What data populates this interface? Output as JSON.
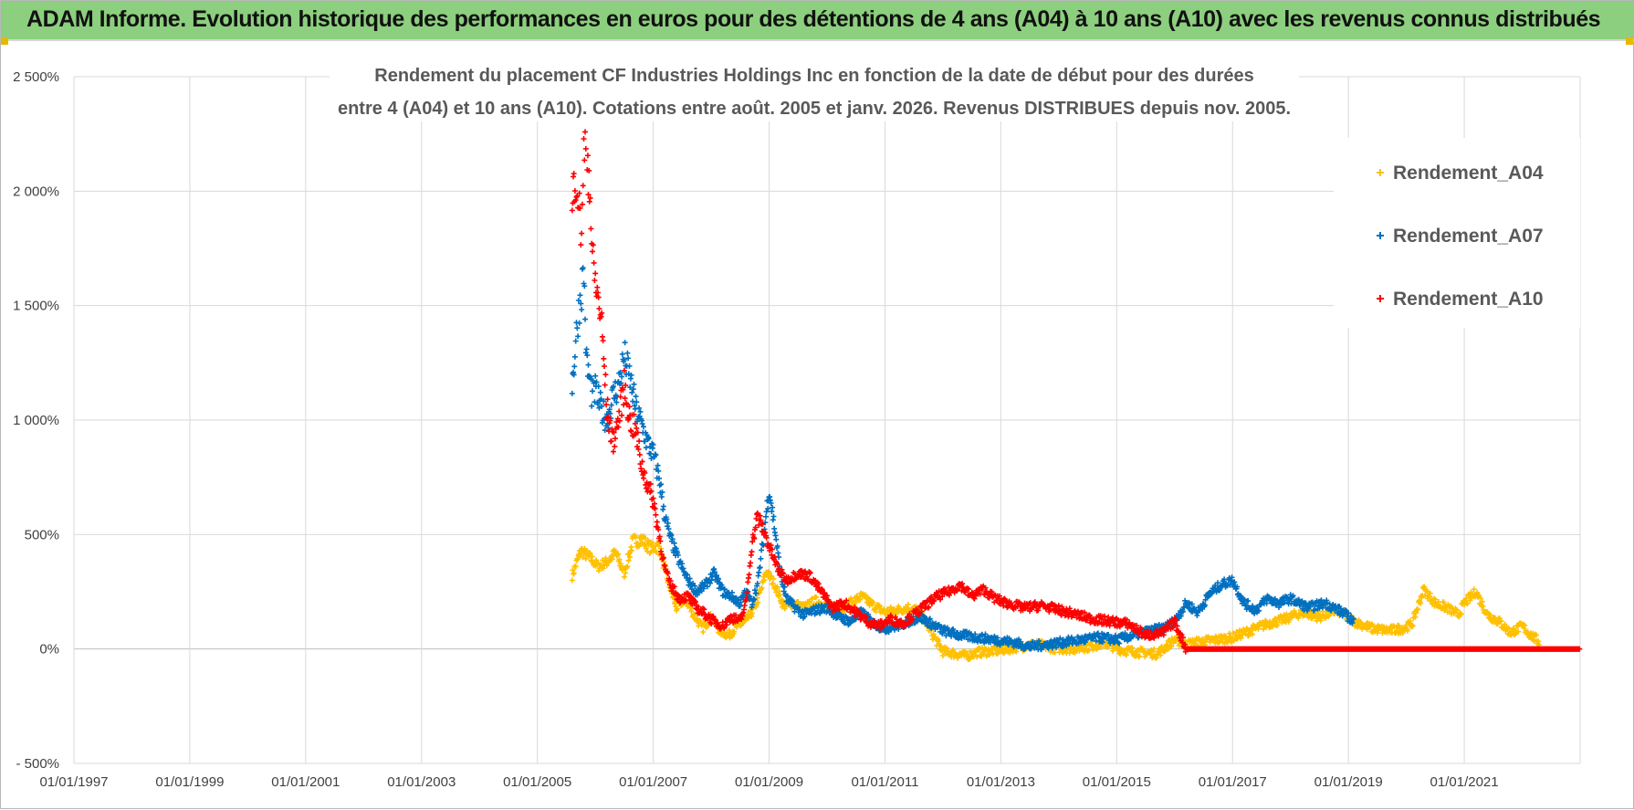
{
  "header": {
    "title": "ADAM Informe. Evolution historique des performances en euros pour des détentions de 4 ans (A04) à 10 ans (A10) avec les revenus connus distribués"
  },
  "chart_data": {
    "type": "scatter",
    "title_line1": "Rendement du placement CF Industries Holdings Inc en fonction de la date de début pour des durées",
    "title_line2": "entre 4 (A04) et 10 ans (A10).  Cotations entre août. 2005 et janv. 2026. Revenus DISTRIBUES depuis nov. 2005.",
    "xlabel": "",
    "ylabel": "",
    "x_range_years": [
      1997.0,
      2023.0
    ],
    "ylim": [
      -500,
      2500
    ],
    "grid": true,
    "legend_position": "top-right",
    "x_tick_labels": [
      "01/01/1997",
      "01/01/1999",
      "01/01/2001",
      "01/01/2003",
      "01/01/2005",
      "01/01/2007",
      "01/01/2009",
      "01/01/2011",
      "01/01/2013",
      "01/01/2015",
      "01/01/2017",
      "01/01/2019",
      "01/01/2021"
    ],
    "x_tick_years": [
      1997,
      1999,
      2001,
      2003,
      2005,
      2007,
      2009,
      2011,
      2013,
      2015,
      2017,
      2019,
      2021
    ],
    "y_tick_labels": [
      "- 500%",
      "0%",
      "500%",
      "1 000%",
      "1 500%",
      "2 000%",
      "2 500%"
    ],
    "y_tick_values": [
      -500,
      0,
      500,
      1000,
      1500,
      2000,
      2500
    ],
    "series": [
      {
        "name": "Rendement_A04",
        "color": "#ffc000",
        "x": [
          2005.6,
          2005.75,
          2005.9,
          2006.05,
          2006.2,
          2006.35,
          2006.5,
          2006.65,
          2006.8,
          2006.95,
          2007.1,
          2007.25,
          2007.4,
          2007.55,
          2007.7,
          2007.85,
          2008.0,
          2008.15,
          2008.3,
          2008.45,
          2008.6,
          2008.75,
          2008.85,
          2008.95,
          2009.1,
          2009.25,
          2009.4,
          2009.6,
          2009.8,
          2010.0,
          2010.2,
          2010.4,
          2010.6,
          2010.8,
          2011.0,
          2011.2,
          2011.4,
          2011.55,
          2011.7,
          2011.85,
          2012.0,
          2012.2,
          2012.4,
          2012.6,
          2012.8,
          2013.0,
          2013.3,
          2013.6,
          2013.9,
          2014.2,
          2014.5,
          2014.8,
          2015.1,
          2015.4,
          2015.7,
          2016.0,
          2016.2,
          2016.4,
          2016.7,
          2017.0,
          2017.3,
          2017.6,
          2017.9,
          2018.2,
          2018.5,
          2018.8,
          2019.1,
          2019.4,
          2019.7,
          2019.95,
          2020.1,
          2020.3,
          2020.5,
          2020.7,
          2020.9,
          2021.0,
          2021.2,
          2021.4,
          2021.6,
          2021.8,
          2022.0,
          2022.15,
          2022.3
        ],
        "values": [
          320,
          430,
          400,
          360,
          380,
          420,
          330,
          470,
          480,
          440,
          450,
          300,
          180,
          220,
          150,
          90,
          140,
          80,
          60,
          100,
          120,
          180,
          250,
          340,
          280,
          190,
          200,
          180,
          210,
          190,
          170,
          200,
          230,
          190,
          160,
          170,
          180,
          170,
          120,
          50,
          -10,
          -20,
          -30,
          -15,
          -10,
          -5,
          10,
          20,
          5,
          0,
          10,
          25,
          -5,
          -15,
          -20,
          40,
          20,
          30,
          40,
          50,
          80,
          110,
          130,
          160,
          140,
          170,
          120,
          90,
          80,
          90,
          110,
          260,
          200,
          180,
          150,
          200,
          250,
          150,
          120,
          70,
          100,
          60,
          30
        ]
      },
      {
        "name": "Rendement_A07",
        "color": "#0070c0",
        "x": [
          2005.6,
          2005.65,
          2005.7,
          2005.75,
          2005.8,
          2005.85,
          2005.9,
          2005.95,
          2006.0,
          2006.1,
          2006.2,
          2006.3,
          2006.4,
          2006.5,
          2006.6,
          2006.7,
          2006.8,
          2006.9,
          2007.0,
          2007.1,
          2007.2,
          2007.3,
          2007.45,
          2007.6,
          2007.75,
          2007.9,
          2008.05,
          2008.2,
          2008.35,
          2008.5,
          2008.6,
          2008.7,
          2008.8,
          2008.9,
          2009.0,
          2009.1,
          2009.2,
          2009.3,
          2009.45,
          2009.6,
          2009.8,
          2010.0,
          2010.2,
          2010.4,
          2010.6,
          2010.8,
          2011.0,
          2011.2,
          2011.4,
          2011.6,
          2011.8,
          2012.0,
          2012.3,
          2012.6,
          2012.9,
          2013.2,
          2013.5,
          2013.8,
          2014.1,
          2014.4,
          2014.7,
          2015.0,
          2015.3,
          2015.6,
          2015.8,
          2016.0,
          2016.2,
          2016.4,
          2016.6,
          2016.8,
          2017.0,
          2017.2,
          2017.4,
          2017.6,
          2017.8,
          2018.0,
          2018.3,
          2018.6,
          2018.9,
          2019.1
        ],
        "values": [
          1150,
          1300,
          1450,
          1550,
          1650,
          1250,
          1180,
          1100,
          1130,
          1050,
          1000,
          1100,
          1150,
          1280,
          1180,
          1050,
          980,
          900,
          850,
          750,
          580,
          480,
          380,
          300,
          250,
          280,
          330,
          250,
          230,
          200,
          250,
          200,
          280,
          480,
          700,
          520,
          320,
          220,
          180,
          150,
          170,
          180,
          140,
          120,
          160,
          110,
          90,
          100,
          120,
          140,
          110,
          80,
          60,
          50,
          40,
          30,
          10,
          20,
          30,
          40,
          50,
          40,
          60,
          80,
          90,
          120,
          200,
          160,
          240,
          280,
          300,
          200,
          170,
          220,
          200,
          220,
          180,
          200,
          160,
          120
        ]
      },
      {
        "name": "Rendement_A10",
        "color": "#ff0000",
        "x": [
          2005.6,
          2005.65,
          2005.7,
          2005.75,
          2005.8,
          2005.85,
          2005.9,
          2005.95,
          2006.0,
          2006.1,
          2006.2,
          2006.3,
          2006.4,
          2006.5,
          2006.6,
          2006.7,
          2006.8,
          2006.9,
          2007.0,
          2007.1,
          2007.2,
          2007.3,
          2007.45,
          2007.6,
          2007.75,
          2007.9,
          2008.05,
          2008.2,
          2008.35,
          2008.5,
          2008.6,
          2008.7,
          2008.8,
          2008.9,
          2009.0,
          2009.15,
          2009.3,
          2009.5,
          2009.7,
          2009.9,
          2010.1,
          2010.3,
          2010.5,
          2010.7,
          2010.9,
          2011.1,
          2011.3,
          2011.5,
          2011.7,
          2011.9,
          2012.1,
          2012.3,
          2012.5,
          2012.7,
          2012.9,
          2013.1,
          2013.4,
          2013.7,
          2014.0,
          2014.3,
          2014.6,
          2014.9,
          2015.2,
          2015.5,
          2015.8,
          2016.0,
          2016.2,
          2016.7,
          2017.2,
          2017.7,
          2018.2,
          2018.7,
          2019.2,
          2019.7,
          2020.2,
          2020.7,
          2021.2,
          2021.7,
          2022.2,
          2022.7,
          2023.0
        ],
        "values": [
          1900,
          2100,
          2000,
          1800,
          2150,
          2200,
          2050,
          1700,
          1600,
          1450,
          1050,
          900,
          1000,
          1150,
          1000,
          950,
          800,
          720,
          650,
          500,
          350,
          280,
          220,
          230,
          180,
          150,
          120,
          100,
          140,
          120,
          200,
          450,
          580,
          520,
          450,
          350,
          300,
          330,
          320,
          250,
          180,
          200,
          160,
          120,
          100,
          130,
          110,
          150,
          190,
          230,
          250,
          280,
          230,
          260,
          220,
          200,
          180,
          190,
          170,
          150,
          130,
          120,
          110,
          60,
          70,
          120,
          0,
          0,
          0,
          0,
          0,
          0,
          0,
          0,
          0,
          0,
          0,
          0,
          0,
          0,
          0
        ]
      }
    ]
  }
}
